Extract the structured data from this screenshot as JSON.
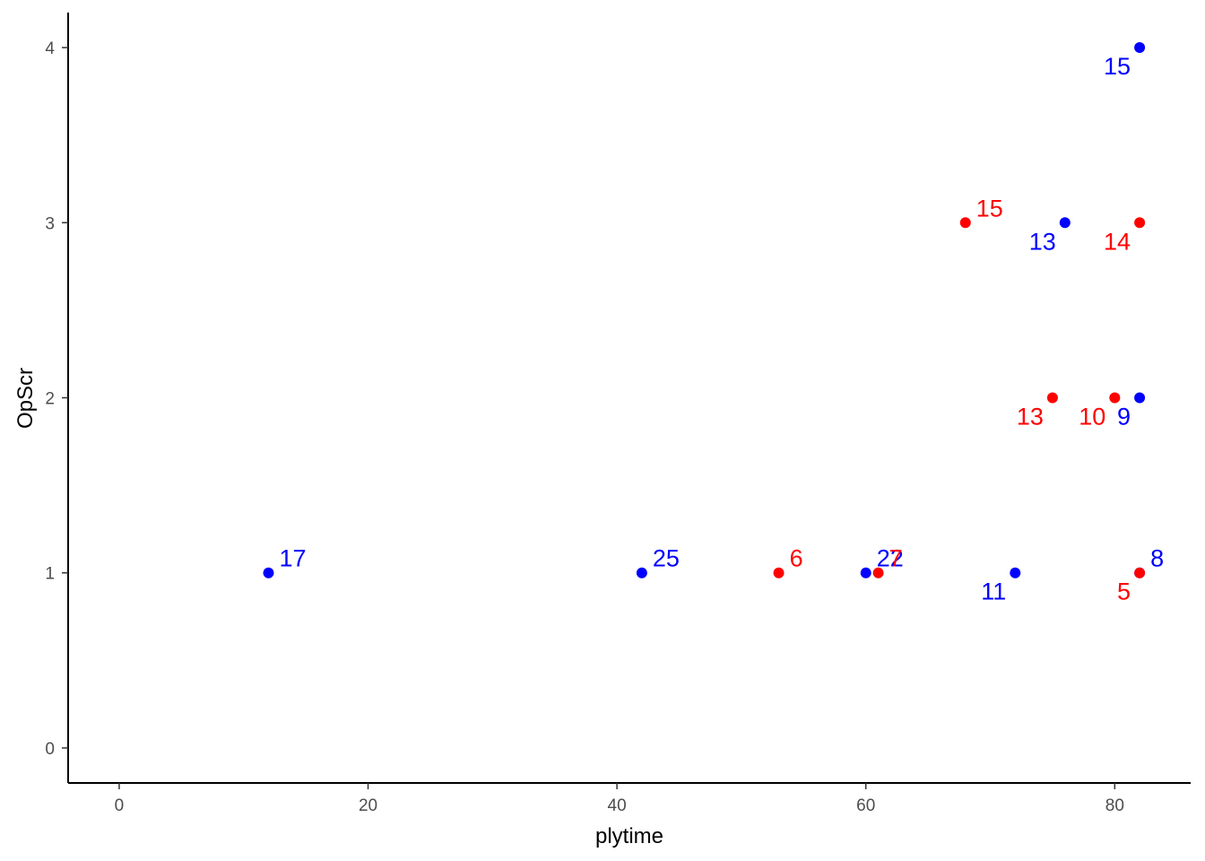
{
  "chart_data": {
    "type": "scatter",
    "title": "",
    "xlabel": "plytime",
    "ylabel": "OpScr",
    "xlim": [
      -4.1,
      86.1
    ],
    "ylim": [
      -0.2,
      4.2
    ],
    "x_ticks": [
      0,
      20,
      40,
      60,
      80
    ],
    "y_ticks": [
      0,
      1,
      2,
      3,
      4
    ],
    "grid": false,
    "legend": "none",
    "colors": {
      "blue": "#0000ff",
      "red": "#ff0000"
    },
    "series": [
      {
        "color": "blue",
        "points": [
          {
            "x": 12,
            "y": 1,
            "label": "17",
            "label_side": "upper-right"
          },
          {
            "x": 42,
            "y": 1,
            "label": "25",
            "label_side": "upper-right"
          },
          {
            "x": 60,
            "y": 1,
            "label": "22",
            "label_side": "upper-right"
          },
          {
            "x": 72,
            "y": 1,
            "label": "11",
            "label_side": "lower-left"
          },
          {
            "x": 82,
            "y": 1,
            "label": "8",
            "label_side": "upper-right"
          },
          {
            "x": 82,
            "y": 2,
            "label": "9",
            "label_side": "lower-left"
          },
          {
            "x": 76,
            "y": 3,
            "label": "13",
            "label_side": "lower-left"
          },
          {
            "x": 82,
            "y": 4,
            "label": "15",
            "label_side": "lower-left"
          }
        ]
      },
      {
        "color": "red",
        "points": [
          {
            "x": 53,
            "y": 1,
            "label": "6",
            "label_side": "upper-right"
          },
          {
            "x": 61,
            "y": 1,
            "label": "7",
            "label_side": "upper-right"
          },
          {
            "x": 82,
            "y": 1,
            "label": "5",
            "label_side": "lower-left"
          },
          {
            "x": 75,
            "y": 2,
            "label": "13",
            "label_side": "lower-left"
          },
          {
            "x": 80,
            "y": 2,
            "label": "10",
            "label_side": "lower-left"
          },
          {
            "x": 68,
            "y": 3,
            "label": "15",
            "label_side": "upper-right"
          },
          {
            "x": 82,
            "y": 3,
            "label": "14",
            "label_side": "lower-left"
          }
        ]
      }
    ]
  }
}
